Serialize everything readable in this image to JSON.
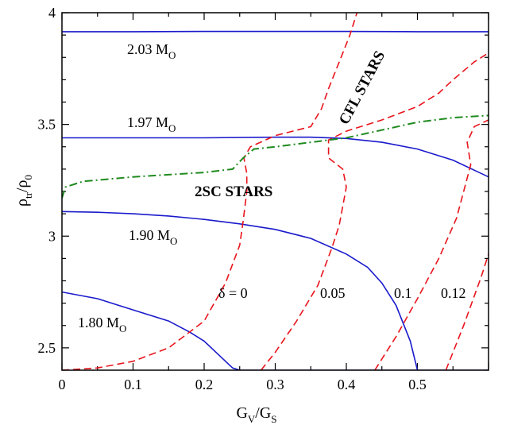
{
  "chart_data": {
    "type": "line",
    "xlabel": {
      "main": "G",
      "sub1": "V",
      "mid": "/G",
      "sub2": "S"
    },
    "ylabel": {
      "main": "ρ",
      "sub1": "tr",
      "mid": "/ρ",
      "sub2": "0"
    },
    "xlim": [
      0,
      0.6
    ],
    "ylim": [
      2.4,
      4.0
    ],
    "xticks": [
      0,
      0.1,
      0.2,
      0.3,
      0.4,
      0.5
    ],
    "xtick_labels": [
      "0",
      "0.1",
      "0.2",
      "0.3",
      "0.4",
      "0.5"
    ],
    "yticks": [
      2.5,
      3.0,
      3.5,
      4.0
    ],
    "ytick_labels": [
      "2.5",
      "3",
      "3.5",
      "4"
    ],
    "colors": {
      "mass": "#1a1acc",
      "delta": "#e8141c",
      "boundary": "#1f8a1f"
    },
    "mass_curves": [
      {
        "label": "2.03 M",
        "sub": "O",
        "points": [
          [
            0,
            3.915
          ],
          [
            0.1,
            3.915
          ],
          [
            0.2,
            3.916
          ],
          [
            0.3,
            3.916
          ],
          [
            0.4,
            3.916
          ],
          [
            0.5,
            3.915
          ],
          [
            0.6,
            3.915
          ]
        ]
      },
      {
        "label": "1.97 M",
        "sub": "O",
        "points": [
          [
            0,
            3.44
          ],
          [
            0.1,
            3.44
          ],
          [
            0.2,
            3.44
          ],
          [
            0.3,
            3.443
          ],
          [
            0.35,
            3.443
          ],
          [
            0.4,
            3.437
          ],
          [
            0.45,
            3.42
          ],
          [
            0.5,
            3.39
          ],
          [
            0.55,
            3.34
          ],
          [
            0.6,
            3.265
          ]
        ]
      },
      {
        "label": "1.90 M",
        "sub": "O",
        "points": [
          [
            0,
            3.11
          ],
          [
            0.05,
            3.107
          ],
          [
            0.1,
            3.1
          ],
          [
            0.15,
            3.09
          ],
          [
            0.2,
            3.075
          ],
          [
            0.25,
            3.055
          ],
          [
            0.3,
            3.03
          ],
          [
            0.35,
            2.99
          ],
          [
            0.4,
            2.92
          ],
          [
            0.43,
            2.86
          ],
          [
            0.45,
            2.79
          ],
          [
            0.47,
            2.69
          ],
          [
            0.49,
            2.53
          ],
          [
            0.5,
            2.4
          ]
        ]
      },
      {
        "label": "1.80 M",
        "sub": "O",
        "points": [
          [
            0,
            2.75
          ],
          [
            0.05,
            2.72
          ],
          [
            0.1,
            2.67
          ],
          [
            0.15,
            2.62
          ],
          [
            0.18,
            2.57
          ],
          [
            0.2,
            2.53
          ],
          [
            0.22,
            2.47
          ],
          [
            0.24,
            2.41
          ],
          [
            0.25,
            2.4
          ],
          [
            0.6,
            2.4
          ]
        ]
      }
    ],
    "delta_curves": [
      {
        "label": "δ = 0",
        "points": [
          [
            0,
            2.4
          ],
          [
            0.05,
            2.41
          ],
          [
            0.1,
            2.44
          ],
          [
            0.15,
            2.5
          ],
          [
            0.2,
            2.62
          ],
          [
            0.23,
            2.79
          ],
          [
            0.25,
            2.96
          ],
          [
            0.255,
            3.07
          ],
          [
            0.26,
            3.2
          ],
          [
            0.26,
            3.28
          ],
          [
            0.256,
            3.35
          ],
          [
            0.265,
            3.4
          ],
          [
            0.3,
            3.45
          ],
          [
            0.35,
            3.49
          ],
          [
            0.365,
            3.57
          ],
          [
            0.375,
            3.66
          ],
          [
            0.39,
            3.78
          ],
          [
            0.405,
            3.9
          ],
          [
            0.415,
            4.0
          ]
        ]
      },
      {
        "label": "0.05",
        "points": [
          [
            0.28,
            2.4
          ],
          [
            0.3,
            2.48
          ],
          [
            0.33,
            2.62
          ],
          [
            0.36,
            2.78
          ],
          [
            0.38,
            2.95
          ],
          [
            0.39,
            3.05
          ],
          [
            0.4,
            3.22
          ],
          [
            0.395,
            3.3
          ],
          [
            0.375,
            3.35
          ],
          [
            0.375,
            3.43
          ],
          [
            0.4,
            3.47
          ],
          [
            0.45,
            3.52
          ],
          [
            0.5,
            3.58
          ],
          [
            0.53,
            3.64
          ],
          [
            0.55,
            3.7
          ],
          [
            0.58,
            3.78
          ],
          [
            0.6,
            3.82
          ]
        ]
      },
      {
        "label": "0.1",
        "points": [
          [
            0.44,
            2.4
          ],
          [
            0.47,
            2.55
          ],
          [
            0.5,
            2.72
          ],
          [
            0.53,
            2.9
          ],
          [
            0.555,
            3.08
          ],
          [
            0.565,
            3.2
          ],
          [
            0.575,
            3.32
          ],
          [
            0.57,
            3.42
          ],
          [
            0.58,
            3.49
          ],
          [
            0.6,
            3.52
          ]
        ]
      },
      {
        "label": "0.12",
        "points": [
          [
            0.54,
            2.4
          ],
          [
            0.565,
            2.6
          ],
          [
            0.59,
            2.82
          ],
          [
            0.6,
            2.92
          ]
        ]
      }
    ],
    "boundary_curve": {
      "points": [
        [
          0,
          3.17
        ],
        [
          0.005,
          3.22
        ],
        [
          0.03,
          3.245
        ],
        [
          0.1,
          3.265
        ],
        [
          0.2,
          3.285
        ],
        [
          0.24,
          3.3
        ],
        [
          0.255,
          3.35
        ],
        [
          0.27,
          3.39
        ],
        [
          0.3,
          3.4
        ],
        [
          0.35,
          3.42
        ],
        [
          0.4,
          3.44
        ],
        [
          0.45,
          3.475
        ],
        [
          0.5,
          3.51
        ],
        [
          0.55,
          3.53
        ],
        [
          0.6,
          3.54
        ]
      ]
    },
    "region_labels": {
      "cfl": "CFL STARS",
      "twosc": "2SC STARS"
    }
  }
}
